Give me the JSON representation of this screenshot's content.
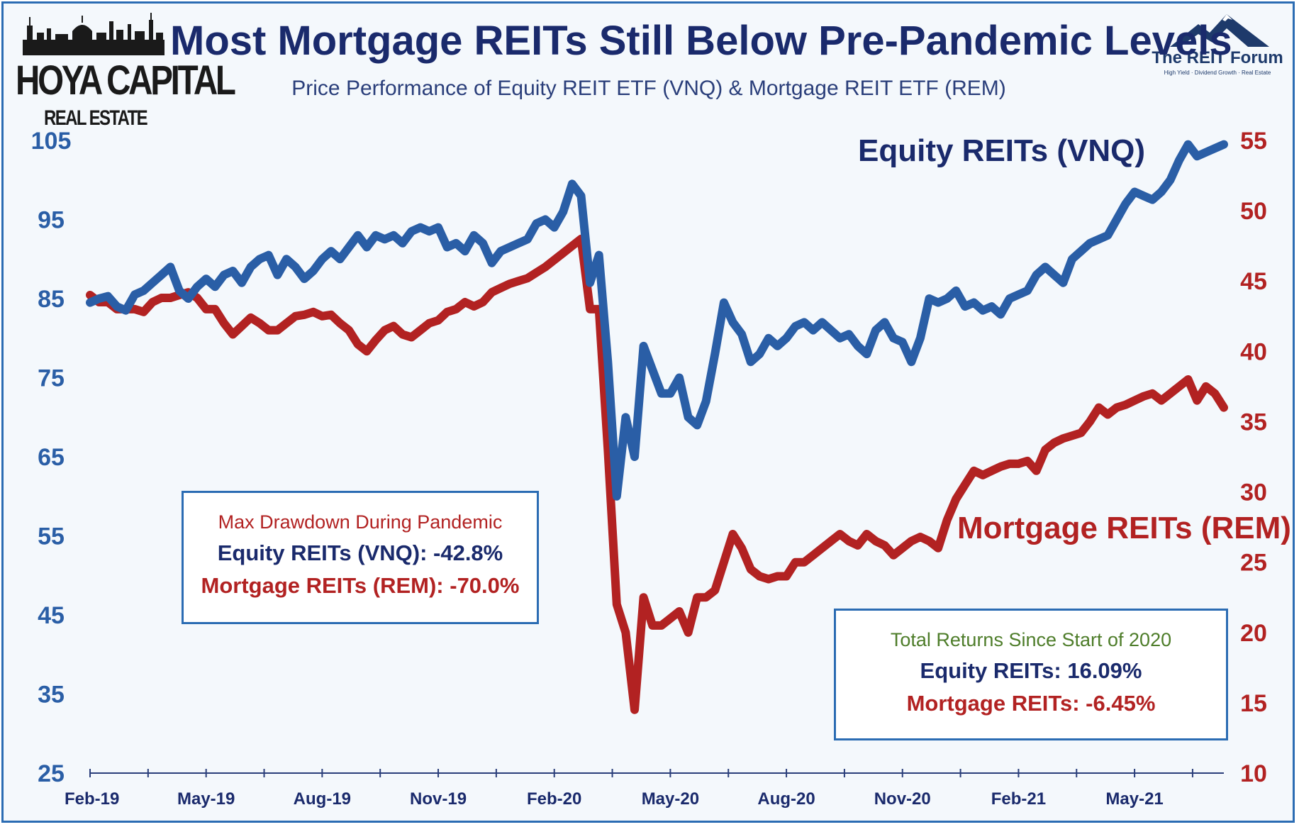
{
  "header": {
    "title": "Most Mortgage REITs Still Below Pre-Pandemic Levels",
    "subtitle": "Price Performance of Equity REIT ETF (VNQ) & Mortgage REIT ETF (REM)"
  },
  "logos": {
    "left_line1": "HOYA CAPITAL",
    "left_line2": "REAL ESTATE",
    "right_name": "The REIT Forum",
    "right_tagline": "High Yield · Dividend Growth · Real Estate"
  },
  "labels": {
    "vnq": "Equity REITs (VNQ)",
    "rem": "Mortgage REITs (REM)"
  },
  "drawdown_box": {
    "heading": "Max Drawdown During Pandemic",
    "vnq": "Equity REITs (VNQ): -42.8%",
    "rem": "Mortgage REITs (REM): -70.0%"
  },
  "returns_box": {
    "heading": "Total Returns Since Start of 2020",
    "vnq": "Equity REITs: 16.09%",
    "rem": "Mortgage REITs: -6.45%"
  },
  "colors": {
    "vnq": "#2a5ea6",
    "rem": "#b22222",
    "left_axis": "#2a5ea6",
    "right_axis": "#b22222",
    "frame": "#2b6cb3"
  },
  "chart_data": {
    "type": "line",
    "xlabel": "",
    "x_ticks": [
      "Feb-19",
      "May-19",
      "Aug-19",
      "Nov-19",
      "Feb-20",
      "May-20",
      "Aug-20",
      "Nov-20",
      "Feb-21",
      "May-21"
    ],
    "x_tick_index": [
      0,
      13,
      26,
      39,
      52,
      65,
      78,
      91,
      104,
      117
    ],
    "left_axis": {
      "ylim": [
        25,
        105
      ],
      "ticks": [
        25,
        35,
        45,
        55,
        65,
        75,
        85,
        95,
        105
      ],
      "series": "Equity REITs (VNQ)"
    },
    "right_axis": {
      "ylim": [
        10,
        55
      ],
      "ticks": [
        10,
        15,
        20,
        25,
        30,
        35,
        40,
        45,
        50,
        55
      ],
      "series": "Mortgage REITs (REM)"
    },
    "grid": false,
    "series": [
      {
        "name": "Equity REITs (VNQ)",
        "axis": "left",
        "values": [
          84.5,
          85.0,
          85.3,
          84.0,
          83.5,
          85.5,
          86.0,
          87.0,
          88.0,
          89.0,
          86.0,
          85.0,
          86.5,
          87.5,
          86.5,
          88.0,
          88.5,
          87.0,
          89.0,
          90.0,
          90.5,
          88.0,
          90.0,
          89.0,
          87.5,
          88.5,
          90.0,
          91.0,
          90.0,
          91.5,
          93.0,
          91.5,
          93.0,
          92.5,
          93.0,
          92.0,
          93.5,
          94.0,
          93.5,
          94.0,
          91.5,
          92.0,
          91.0,
          93.0,
          92.0,
          89.5,
          91.0,
          91.5,
          92.0,
          92.5,
          94.5,
          95.0,
          94.0,
          96.0,
          99.5,
          98.0,
          87.0,
          90.5,
          77.0,
          60.0,
          70.0,
          65.0,
          79.0,
          76.0,
          73.0,
          73.0,
          75.0,
          70.0,
          69.0,
          72.0,
          78.0,
          84.5,
          82.0,
          80.5,
          77.0,
          78.0,
          80.0,
          79.0,
          80.0,
          81.5,
          82.0,
          81.0,
          82.0,
          81.0,
          80.0,
          80.5,
          79.0,
          78.0,
          81.0,
          82.0,
          80.0,
          79.5,
          77.0,
          80.0,
          85.0,
          84.5,
          85.0,
          86.0,
          84.0,
          84.5,
          83.5,
          84.0,
          83.0,
          85.0,
          85.5,
          86.0,
          88.0,
          89.0,
          88.0,
          87.0,
          90.0,
          91.0,
          92.0,
          92.5,
          93.0,
          95.0,
          97.0,
          98.5,
          98.0,
          97.5,
          98.5,
          100.0,
          102.5,
          104.5,
          103.0,
          103.5,
          104.0,
          104.5
        ]
      },
      {
        "name": "Mortgage REITs (REM)",
        "axis": "right",
        "values": [
          44.0,
          43.5,
          43.5,
          43.0,
          43.0,
          43.0,
          42.8,
          43.5,
          43.8,
          43.8,
          44.0,
          44.2,
          43.8,
          43.0,
          43.0,
          42.0,
          41.2,
          41.8,
          42.4,
          42.0,
          41.5,
          41.5,
          42.0,
          42.5,
          42.6,
          42.8,
          42.5,
          42.6,
          42.0,
          41.5,
          40.5,
          40.0,
          40.8,
          41.5,
          41.8,
          41.2,
          41.0,
          41.5,
          42.0,
          42.2,
          42.8,
          43.0,
          43.5,
          43.2,
          43.5,
          44.2,
          44.5,
          44.8,
          45.0,
          45.2,
          45.6,
          46.0,
          46.5,
          47.0,
          47.5,
          48.0,
          43.0,
          43.0,
          33.0,
          22.0,
          20.0,
          14.5,
          22.5,
          20.5,
          20.5,
          21.0,
          21.5,
          20.0,
          22.5,
          22.5,
          23.0,
          25.0,
          27.0,
          26.0,
          24.5,
          24.0,
          23.8,
          24.0,
          24.0,
          25.0,
          25.0,
          25.5,
          26.0,
          26.5,
          27.0,
          26.5,
          26.2,
          27.0,
          26.5,
          26.2,
          25.5,
          26.0,
          26.5,
          26.8,
          26.5,
          26.0,
          28.0,
          29.5,
          30.5,
          31.5,
          31.2,
          31.5,
          31.8,
          32.0,
          32.0,
          32.2,
          31.5,
          33.0,
          33.5,
          33.8,
          34.0,
          34.2,
          35.0,
          36.0,
          35.5,
          36.0,
          36.2,
          36.5,
          36.8,
          37.0,
          36.5,
          37.0,
          37.5,
          38.0,
          36.5,
          37.5,
          37.0,
          36.0
        ]
      }
    ]
  }
}
